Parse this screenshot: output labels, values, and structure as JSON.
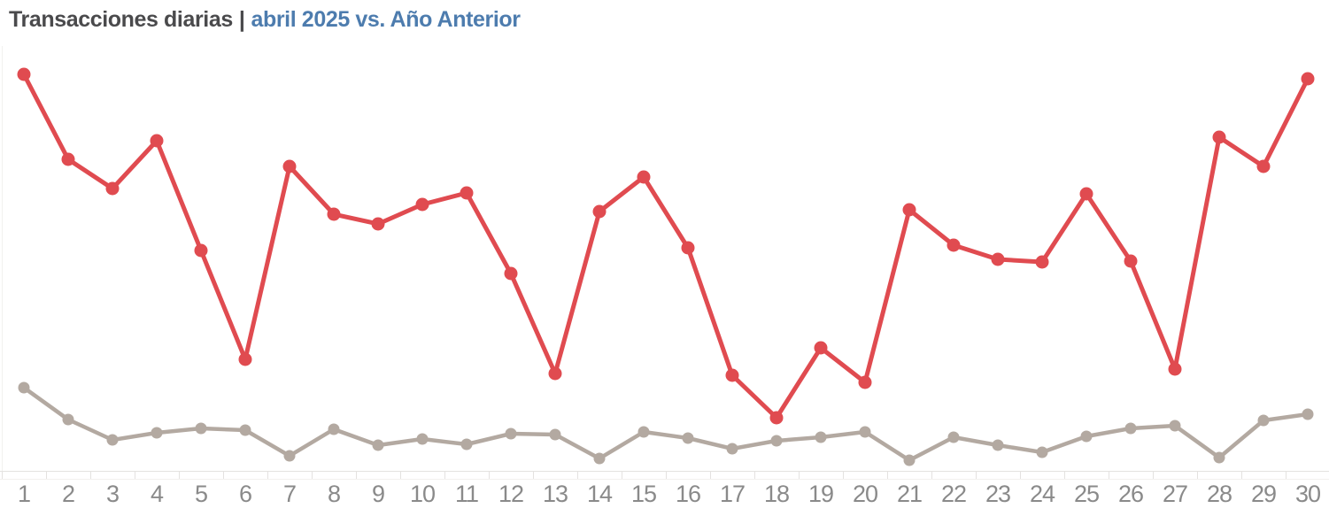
{
  "header": {
    "title_main": "Transacciones diarias",
    "separator": "|",
    "title_sub": "abril 2025 vs. Año Anterior",
    "colors": {
      "title_main": "#4a4a4c",
      "title_sub": "#4d7cae"
    }
  },
  "chart_data": {
    "type": "line",
    "title": "Transacciones diarias | abril 2025 vs. Año Anterior",
    "categories": [
      "1",
      "2",
      "3",
      "4",
      "5",
      "6",
      "7",
      "8",
      "9",
      "10",
      "11",
      "12",
      "13",
      "14",
      "15",
      "16",
      "17",
      "18",
      "19",
      "20",
      "21",
      "22",
      "23",
      "24",
      "25",
      "26",
      "27",
      "28",
      "29",
      "30"
    ],
    "series": [
      {
        "name": "abril 2025",
        "color": "#e04b50",
        "values": [
          448,
          352,
          319,
          373,
          249,
          126,
          344,
          290,
          279,
          301,
          314,
          223,
          110,
          293,
          332,
          252,
          108,
          60,
          139,
          100,
          295,
          255,
          239,
          236,
          313,
          237,
          115,
          377,
          344,
          443
        ]
      },
      {
        "name": "Año Anterior",
        "color": "#b3a9a1",
        "values": [
          94,
          58,
          35,
          43,
          48,
          46,
          17,
          47,
          29,
          36,
          30,
          42,
          41,
          14,
          44,
          37,
          25,
          34,
          38,
          44,
          12,
          38,
          29,
          21,
          39,
          48,
          51,
          15,
          57,
          64
        ]
      }
    ],
    "xlabel": "",
    "ylabel": "",
    "ylim": [
      0,
      470
    ],
    "y_axis_labels_visible": false,
    "grid": false,
    "legend_position": "none",
    "x_tick_label_color": "#8a8a8a",
    "axis_line_color": "#e4e2e0",
    "axis_line_faint_color": "#f2f1ef",
    "units_note": "no y-axis labels shown; values estimated in relative units from point heights"
  }
}
